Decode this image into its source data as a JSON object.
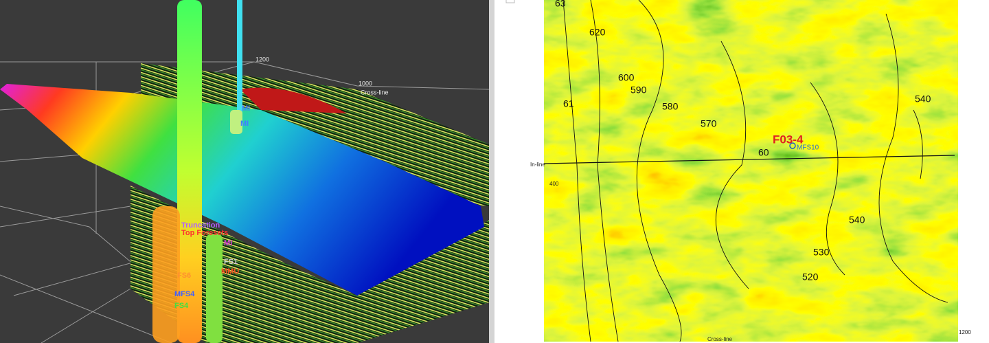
{
  "view_3d": {
    "axis_labels": [
      "1200",
      "1000",
      "Cross-line"
    ],
    "well_markers": [
      "MI",
      "MI",
      "Truncation",
      "Top Foresets",
      "MI",
      "FS1",
      "MMU",
      "FS6",
      "MFS4",
      "FS4"
    ]
  },
  "map_view": {
    "inline_label": "In-line",
    "inline_tick": "400",
    "crossline_label": "Cross-line",
    "crossline_tick": "1200",
    "well_name": "F03-4",
    "well_marker": "MFS10",
    "contour_labels": [
      "63",
      "620",
      "600",
      "590",
      "61",
      "580",
      "570",
      "60",
      "540",
      "540",
      "530",
      "520"
    ]
  }
}
